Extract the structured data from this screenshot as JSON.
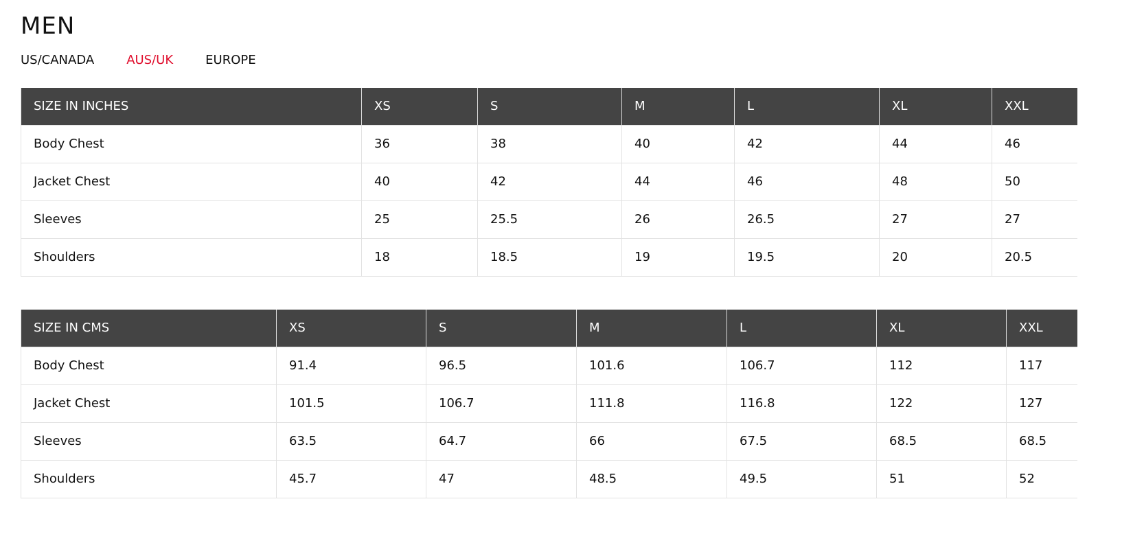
{
  "header": {
    "title": "MEN"
  },
  "tabs": [
    "US/CANADA",
    "AUS/UK",
    "EUROPE"
  ],
  "tables": [
    {
      "header": [
        "SIZE IN INCHES",
        "XS",
        "S",
        "M",
        "L",
        "XL",
        "XXL"
      ],
      "rows": [
        [
          "Body Chest",
          "36",
          "38",
          "40",
          "42",
          "44",
          "46"
        ],
        [
          "Jacket Chest",
          "40",
          "42",
          "44",
          "46",
          "48",
          "50"
        ],
        [
          "Sleeves",
          "25",
          "25.5",
          "26",
          "26.5",
          "27",
          "27"
        ],
        [
          "Shoulders",
          "18",
          "18.5",
          "19",
          "19.5",
          "20",
          "20.5"
        ]
      ]
    },
    {
      "header": [
        "SIZE IN CMS",
        "XS",
        "S",
        "M",
        "L",
        "XL",
        "XXL"
      ],
      "rows": [
        [
          "Body Chest",
          "91.4",
          "96.5",
          "101.6",
          "106.7",
          "112",
          "117"
        ],
        [
          "Jacket Chest",
          "101.5",
          "106.7",
          "111.8",
          "116.8",
          "122",
          "127"
        ],
        [
          "Sleeves",
          "63.5",
          "64.7",
          "66",
          "67.5",
          "68.5",
          "68.5"
        ],
        [
          "Shoulders",
          "45.7",
          "47",
          "48.5",
          "49.5",
          "51",
          "52"
        ]
      ]
    }
  ]
}
